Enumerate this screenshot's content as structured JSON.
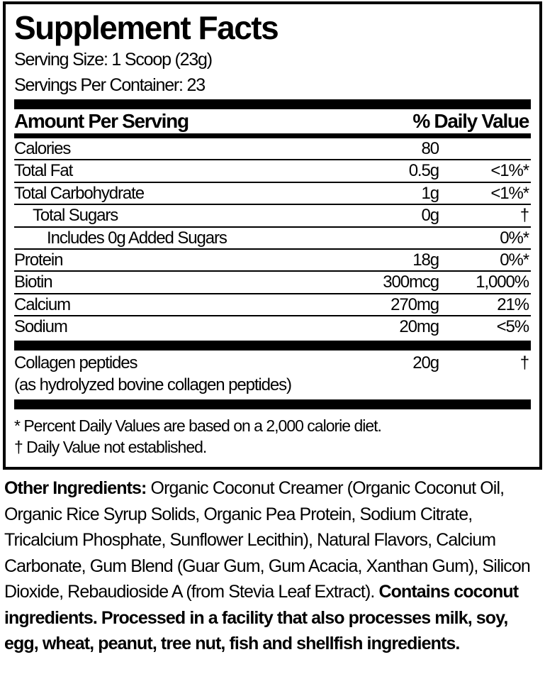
{
  "title": "Supplement Facts",
  "serving_size": "Serving Size: 1 Scoop (23g)",
  "servings_per_container": "Servings Per Container: 23",
  "header": {
    "amount": "Amount Per Serving",
    "dv": "% Daily Value"
  },
  "rows": [
    {
      "name": "Calories",
      "amount": "80",
      "dv": ""
    },
    {
      "name": "Total Fat",
      "amount": "0.5g",
      "dv": "<1%*"
    },
    {
      "name": "Total Carbohydrate",
      "amount": "1g",
      "dv": "<1%*"
    },
    {
      "name": "Total Sugars",
      "amount": "0g",
      "dv": "†"
    },
    {
      "name": "Includes 0g Added Sugars",
      "amount": "",
      "dv": "0%*"
    },
    {
      "name": "Protein",
      "amount": "18g",
      "dv": "0%*"
    },
    {
      "name": "Biotin",
      "amount": "300mcg",
      "dv": "1,000%"
    },
    {
      "name": "Calcium",
      "amount": "270mg",
      "dv": "21%"
    },
    {
      "name": "Sodium",
      "amount": "20mg",
      "dv": "<5%"
    }
  ],
  "collagen": {
    "name": "Collagen peptides",
    "sub": "(as hydrolyzed bovine collagen peptides)",
    "amount": "20g",
    "dv": "†"
  },
  "footnotes": [
    "* Percent Daily Values are based on a 2,000 calorie diet.",
    "† Daily Value not established."
  ],
  "ingredients": {
    "label": "Other Ingredients:",
    "text": " Organic Coconut Creamer (Organic Coconut Oil, Organic Rice Syrup Solids, Organic Pea Protein, Sodium Citrate, Tricalcium Phosphate, Sunflower Lecithin), Natural Flavors, Calcium Carbonate, Gum Blend (Guar Gum, Gum Acacia, Xanthan Gum), Silicon Dioxide, Rebaudioside A (from Stevia Leaf Extract). ",
    "allergens": "Contains coconut ingredients. Processed in a facility that also processes milk, soy, egg, wheat, peanut, tree nut, fish and shellfish ingredients."
  }
}
